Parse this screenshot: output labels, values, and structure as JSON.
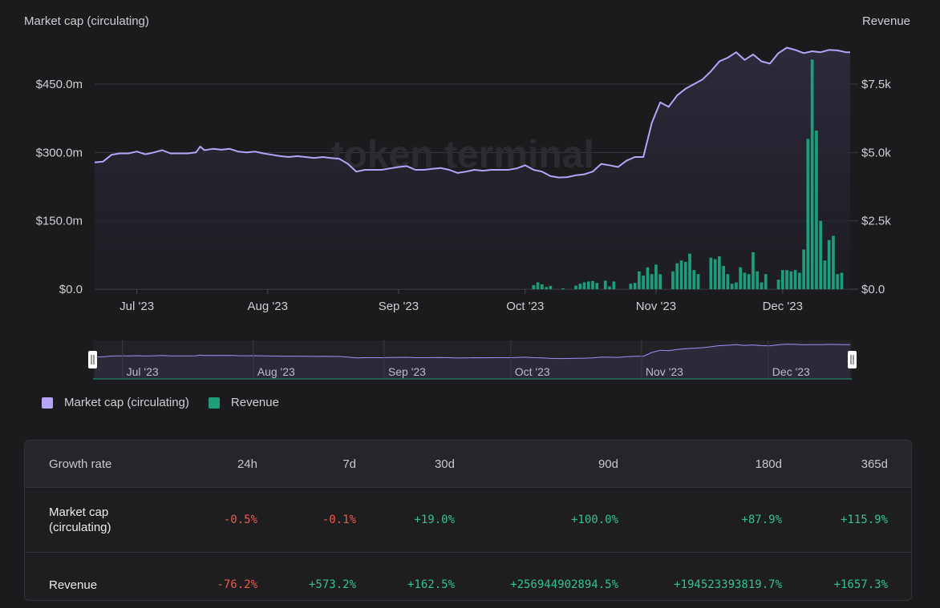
{
  "chart_data": {
    "type": "bar+area",
    "watermark": "token terminal_",
    "left_axis": {
      "title": "Market cap (circulating)",
      "ticks": [
        "$0.0",
        "$150.0m",
        "$300.0m",
        "$450.0m"
      ],
      "tick_values": [
        0,
        150,
        300,
        450
      ],
      "range": [
        0,
        540
      ]
    },
    "right_axis": {
      "title": "Revenue",
      "ticks": [
        "$0.0",
        "$2.5k",
        "$5.0k",
        "$7.5k"
      ],
      "tick_values": [
        0,
        2500,
        5000,
        7500
      ],
      "range": [
        0,
        9000
      ]
    },
    "x_ticks": [
      "Jul '23",
      "Aug '23",
      "Sep '23",
      "Oct '23",
      "Nov '23",
      "Dec '23"
    ],
    "x_tick_days": [
      10,
      41,
      72,
      102,
      133,
      163
    ],
    "day_count": 180,
    "market_cap_series": {
      "name": "Market cap (circulating)",
      "color": "#a78bfa",
      "unit": "million USD",
      "days": [
        0,
        2,
        4,
        6,
        8,
        10,
        12,
        14,
        16,
        18,
        20,
        22,
        24,
        25,
        26,
        28,
        30,
        32,
        34,
        36,
        38,
        40,
        42,
        44,
        46,
        48,
        50,
        52,
        54,
        56,
        58,
        60,
        62,
        64,
        66,
        68,
        70,
        72,
        74,
        76,
        78,
        80,
        82,
        84,
        86,
        88,
        90,
        92,
        94,
        96,
        98,
        100,
        102,
        104,
        106,
        108,
        110,
        112,
        114,
        116,
        118,
        120,
        122,
        124,
        126,
        128,
        130,
        132,
        134,
        136,
        138,
        140,
        142,
        144,
        146,
        148,
        150,
        152,
        154,
        156,
        158,
        160,
        162,
        164,
        166,
        168,
        170,
        172,
        174,
        176,
        178,
        179
      ],
      "values": [
        278,
        280,
        295,
        298,
        298,
        302,
        296,
        300,
        305,
        298,
        298,
        298,
        300,
        313,
        305,
        308,
        306,
        308,
        302,
        300,
        302,
        298,
        295,
        292,
        290,
        292,
        290,
        288,
        290,
        288,
        286,
        275,
        258,
        262,
        262,
        262,
        265,
        268,
        270,
        262,
        262,
        264,
        266,
        262,
        255,
        258,
        262,
        260,
        262,
        262,
        262,
        265,
        272,
        262,
        258,
        248,
        245,
        246,
        250,
        252,
        258,
        275,
        272,
        268,
        282,
        290,
        290,
        365,
        410,
        400,
        425,
        440,
        450,
        460,
        478,
        500,
        508,
        520,
        503,
        515,
        500,
        495,
        518,
        530,
        525,
        518,
        522,
        520,
        525,
        524,
        520,
        520
      ]
    },
    "revenue_series": {
      "name": "Revenue",
      "color": "#1d9e7a",
      "unit": "USD",
      "days": [
        104,
        105,
        106,
        107,
        108,
        111,
        114,
        115,
        116,
        117,
        118,
        119,
        121,
        122,
        123,
        127,
        128,
        129,
        130,
        131,
        132,
        133,
        134,
        137,
        138,
        139,
        140,
        141,
        142,
        143,
        146,
        147,
        148,
        149,
        150,
        151,
        152,
        153,
        154,
        155,
        156,
        157,
        158,
        159,
        162,
        163,
        164,
        165,
        166,
        167,
        168,
        169,
        170,
        171,
        172,
        173,
        174,
        175,
        176,
        177
      ],
      "values": [
        150,
        250,
        180,
        80,
        120,
        30,
        130,
        200,
        250,
        280,
        300,
        230,
        310,
        100,
        280,
        200,
        230,
        650,
        500,
        800,
        550,
        900,
        550,
        650,
        950,
        1050,
        1000,
        1300,
        700,
        550,
        1150,
        1100,
        1200,
        850,
        550,
        200,
        250,
        800,
        600,
        550,
        1350,
        650,
        250,
        550,
        350,
        700,
        700,
        650,
        700,
        600,
        1450,
        5500,
        8400,
        5800,
        2500,
        1050,
        1800,
        1950,
        550,
        600
      ]
    }
  },
  "range_selector": {
    "labels": [
      "Jul '23",
      "Aug '23",
      "Sep '23",
      "Oct '23",
      "Nov '23",
      "Dec '23"
    ]
  },
  "legend": [
    {
      "label": "Market cap (circulating)",
      "color": "#a78bfa"
    },
    {
      "label": "Revenue",
      "color": "#1d9e7a"
    }
  ],
  "growth_table": {
    "header": [
      "Growth rate",
      "24h",
      "7d",
      "30d",
      "90d",
      "180d",
      "365d"
    ],
    "rows": [
      {
        "label": "Market cap (circulating)",
        "values": [
          "-0.5%",
          "-0.1%",
          "+19.0%",
          "+100.0%",
          "+87.9%",
          "+115.9%"
        ]
      },
      {
        "label": "Revenue",
        "values": [
          "-76.2%",
          "+573.2%",
          "+162.5%",
          "+256944902894.5%",
          "+194523393819.7%",
          "+1657.3%"
        ]
      }
    ]
  }
}
